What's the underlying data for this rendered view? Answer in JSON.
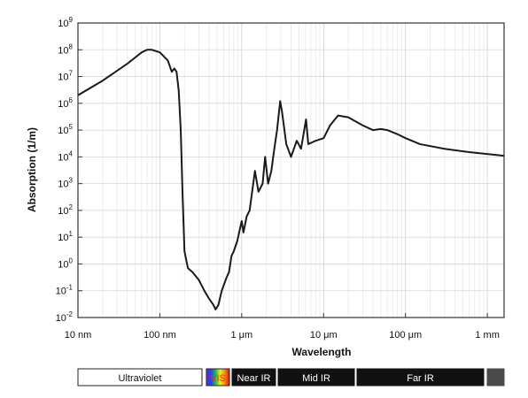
{
  "chart_data": {
    "type": "line",
    "title": "",
    "xlabel": "Wavelength",
    "ylabel": "Absorption (1/m)",
    "x_scale": "log",
    "y_scale": "log",
    "x_unit": "m",
    "xlim": [
      1e-08,
      0.0016
    ],
    "ylim": [
      0.01,
      1000000000.0
    ],
    "grid": true,
    "x_ticks": [
      {
        "value": 1e-08,
        "label": "10 nm"
      },
      {
        "value": 1e-07,
        "label": "100 nm"
      },
      {
        "value": 1e-06,
        "label": "1 μm"
      },
      {
        "value": 1e-05,
        "label": "10 μm"
      },
      {
        "value": 0.0001,
        "label": "100 μm"
      },
      {
        "value": 0.001,
        "label": "1 mm"
      }
    ],
    "y_ticks": [
      {
        "value": 0.01,
        "base": "10",
        "exp": "-2"
      },
      {
        "value": 0.1,
        "base": "10",
        "exp": "-1"
      },
      {
        "value": 1,
        "base": "10",
        "exp": "0"
      },
      {
        "value": 10,
        "base": "10",
        "exp": "1"
      },
      {
        "value": 100,
        "base": "10",
        "exp": "2"
      },
      {
        "value": 1000,
        "base": "10",
        "exp": "3"
      },
      {
        "value": 10000,
        "base": "10",
        "exp": "4"
      },
      {
        "value": 100000,
        "base": "10",
        "exp": "5"
      },
      {
        "value": 1000000,
        "base": "10",
        "exp": "6"
      },
      {
        "value": 10000000,
        "base": "10",
        "exp": "7"
      },
      {
        "value": 100000000,
        "base": "10",
        "exp": "8"
      },
      {
        "value": 1000000000,
        "base": "10",
        "exp": "9"
      }
    ],
    "series": [
      {
        "color": "#1a1a1a",
        "points": [
          [
            1e-08,
            2000000.0
          ],
          [
            2e-08,
            7000000.0
          ],
          [
            4e-08,
            30000000.0
          ],
          [
            6e-08,
            80000000.0
          ],
          [
            7e-08,
            100000000.0
          ],
          [
            8e-08,
            100000000.0
          ],
          [
            1e-07,
            80000000.0
          ],
          [
            1.25e-07,
            40000000.0
          ],
          [
            1.4e-07,
            15000000.0
          ],
          [
            1.5e-07,
            20000000.0
          ],
          [
            1.6e-07,
            15000000.0
          ],
          [
            1.7e-07,
            3000000.0
          ],
          [
            1.8e-07,
            100000.0
          ],
          [
            1.9e-07,
            300
          ],
          [
            2e-07,
            3
          ],
          [
            2.2e-07,
            0.7
          ],
          [
            2.5e-07,
            0.5
          ],
          [
            3e-07,
            0.25
          ],
          [
            3.5e-07,
            0.1
          ],
          [
            4e-07,
            0.05
          ],
          [
            4.5e-07,
            0.03
          ],
          [
            4.8e-07,
            0.02
          ],
          [
            5.2e-07,
            0.03
          ],
          [
            5.7e-07,
            0.1
          ],
          [
            6.5e-07,
            0.3
          ],
          [
            7e-07,
            0.5
          ],
          [
            7.5e-07,
            2
          ],
          [
            8e-07,
            3
          ],
          [
            8.8e-07,
            7
          ],
          [
            9.5e-07,
            20
          ],
          [
            1e-06,
            40
          ],
          [
            1.05e-06,
            15
          ],
          [
            1.15e-06,
            60
          ],
          [
            1.25e-06,
            100
          ],
          [
            1.45e-06,
            3000
          ],
          [
            1.6e-06,
            500
          ],
          [
            1.8e-06,
            1000
          ],
          [
            1.93e-06,
            10000
          ],
          [
            2.1e-06,
            1000
          ],
          [
            2.3e-06,
            3000
          ],
          [
            2.5e-06,
            20000
          ],
          [
            2.7e-06,
            100000
          ],
          [
            2.95e-06,
            1200000
          ],
          [
            3.1e-06,
            500000
          ],
          [
            3.5e-06,
            30000
          ],
          [
            4e-06,
            10000
          ],
          [
            4.7e-06,
            40000
          ],
          [
            5.3e-06,
            20000
          ],
          [
            6.1e-06,
            250000
          ],
          [
            6.5e-06,
            30000
          ],
          [
            8e-06,
            40000
          ],
          [
            1e-05,
            50000
          ],
          [
            1.2e-05,
            150000
          ],
          [
            1.5e-05,
            350000
          ],
          [
            2e-05,
            300000
          ],
          [
            3e-05,
            150000
          ],
          [
            4e-05,
            100000
          ],
          [
            5e-05,
            110000
          ],
          [
            6e-05,
            100000
          ],
          [
            8e-05,
            70000
          ],
          [
            0.0001,
            50000
          ],
          [
            0.00015,
            30000
          ],
          [
            0.0003,
            20000
          ],
          [
            0.0006,
            15000
          ],
          [
            0.0016,
            11000
          ]
        ]
      }
    ]
  },
  "spectrum_bands": [
    {
      "label": "Ultraviolet",
      "bg": "#ffffff",
      "fg": "#111111",
      "border": "#222222"
    },
    {
      "label": "VIS",
      "bg": "rainbow",
      "fg": "#ff2a1a",
      "border": "#222222"
    },
    {
      "label": "Near IR",
      "bg": "#111111",
      "fg": "#ffffff",
      "border": "#111111"
    },
    {
      "label": "Mid IR",
      "bg": "#111111",
      "fg": "#ffffff",
      "border": "#111111"
    },
    {
      "label": "Far IR",
      "bg": "#111111",
      "fg": "#ffffff",
      "border": "#111111"
    },
    {
      "label": "",
      "bg": "#4a4a4a",
      "fg": "#ffffff",
      "border": "#4a4a4a"
    }
  ]
}
